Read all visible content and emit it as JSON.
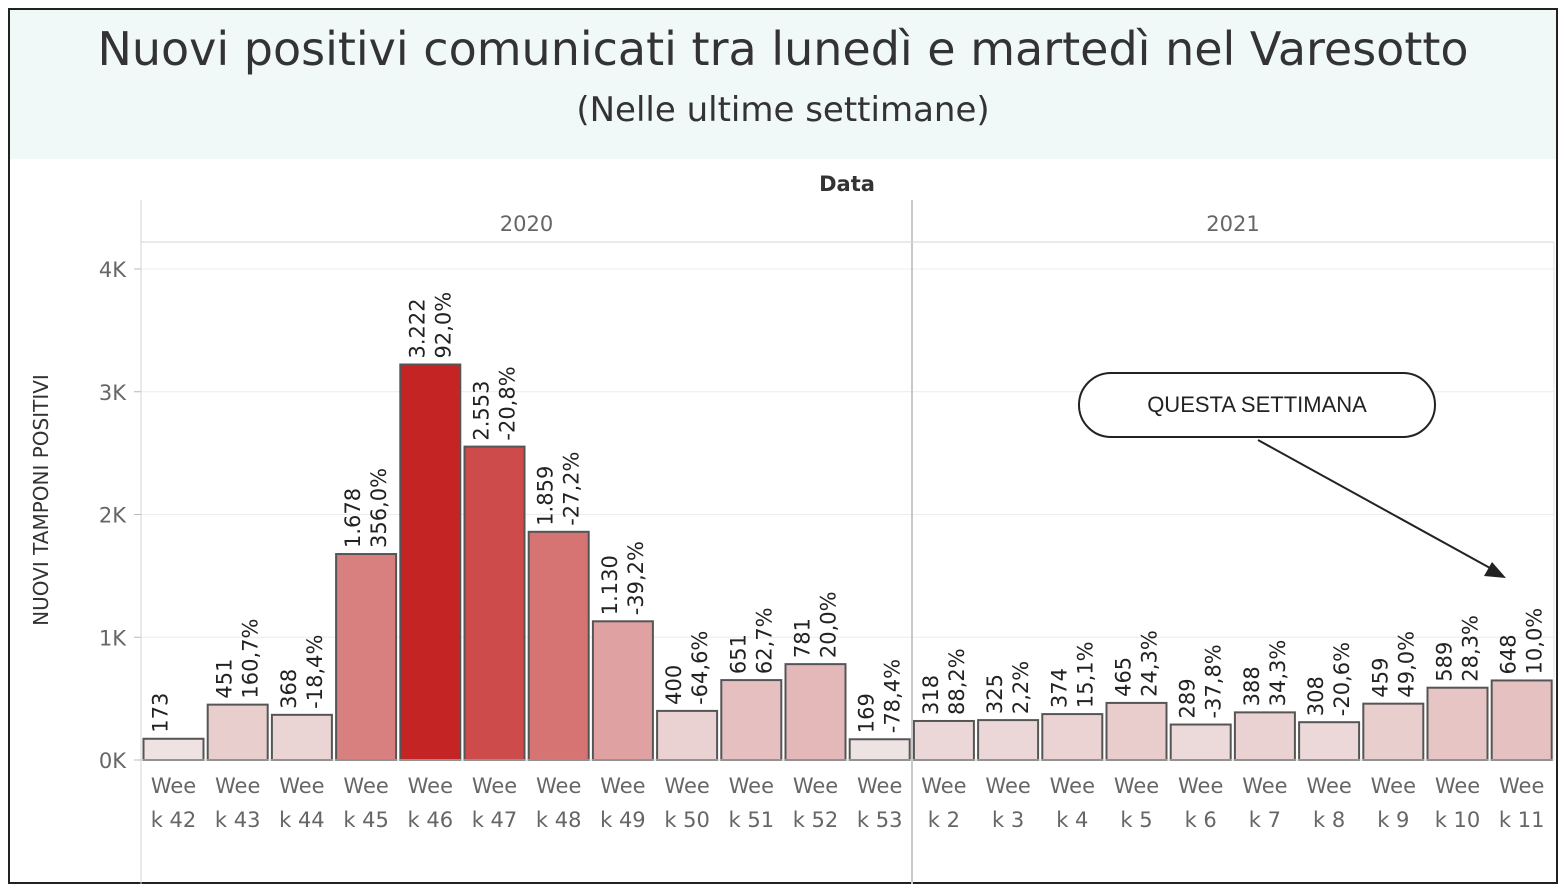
{
  "header": {
    "title": "Nuovi positivi comunicati tra lunedì e martedì nel Varesotto",
    "subtitle": "(Nelle ultime settimane)"
  },
  "annotation": {
    "text": "QUESTA SETTIMANA"
  },
  "chart_data": {
    "type": "bar",
    "xlabel": "Data",
    "ylabel": "NUOVI TAMPONI POSITIVI",
    "ylim": [
      0,
      4000
    ],
    "yticks": [
      "0K",
      "1K",
      "2K",
      "3K",
      "4K"
    ],
    "grid": true,
    "groups": [
      {
        "label": "2020",
        "count": 12
      },
      {
        "label": "2021",
        "count": 10
      }
    ],
    "categories": [
      [
        "Wee",
        "k 42"
      ],
      [
        "Wee",
        "k 43"
      ],
      [
        "Wee",
        "k 44"
      ],
      [
        "Wee",
        "k 45"
      ],
      [
        "Wee",
        "k 46"
      ],
      [
        "Wee",
        "k 47"
      ],
      [
        "Wee",
        "k 48"
      ],
      [
        "Wee",
        "k 49"
      ],
      [
        "Wee",
        "k 50"
      ],
      [
        "Wee",
        "k 51"
      ],
      [
        "Wee",
        "k 52"
      ],
      [
        "Wee",
        "k 53"
      ],
      [
        "Wee",
        "k 2"
      ],
      [
        "Wee",
        "k 3"
      ],
      [
        "Wee",
        "k 4"
      ],
      [
        "Wee",
        "k 5"
      ],
      [
        "Wee",
        "k 6"
      ],
      [
        "Wee",
        "k 7"
      ],
      [
        "Wee",
        "k 8"
      ],
      [
        "Wee",
        "k 9"
      ],
      [
        "Wee",
        "k 10"
      ],
      [
        "Wee",
        "k 11"
      ]
    ],
    "values": [
      173,
      451,
      368,
      1678,
      3222,
      2553,
      1859,
      1130,
      400,
      651,
      781,
      169,
      318,
      325,
      374,
      465,
      289,
      388,
      308,
      459,
      589,
      648
    ],
    "value_labels": [
      "173",
      "451",
      "368",
      "1.678",
      "3.222",
      "2.553",
      "1.859",
      "1.130",
      "400",
      "651",
      "781",
      "169",
      "318",
      "325",
      "374",
      "465",
      "289",
      "388",
      "308",
      "459",
      "589",
      "648"
    ],
    "pct_labels": [
      "",
      "160,7%",
      "-18,4%",
      "356,0%",
      "92,0%",
      "-20,8%",
      "-27,2%",
      "-39,2%",
      "-64,6%",
      "62,7%",
      "20,0%",
      "-78,4%",
      "88,2%",
      "2,2%",
      "15,1%",
      "24,3%",
      "-37,8%",
      "34,3%",
      "-20,6%",
      "49,0%",
      "28,3%",
      "10,0%"
    ],
    "pct_change": [
      null,
      160.7,
      -18.4,
      356.0,
      92.0,
      -20.8,
      -27.2,
      -39.2,
      -64.6,
      62.7,
      20.0,
      -78.4,
      88.2,
      2.2,
      15.1,
      24.3,
      -37.8,
      34.3,
      -20.6,
      49.0,
      28.3,
      10.0
    ],
    "colors": {
      "low": "#f1f1f1",
      "high": "#c42424",
      "stroke": "#555555"
    }
  }
}
